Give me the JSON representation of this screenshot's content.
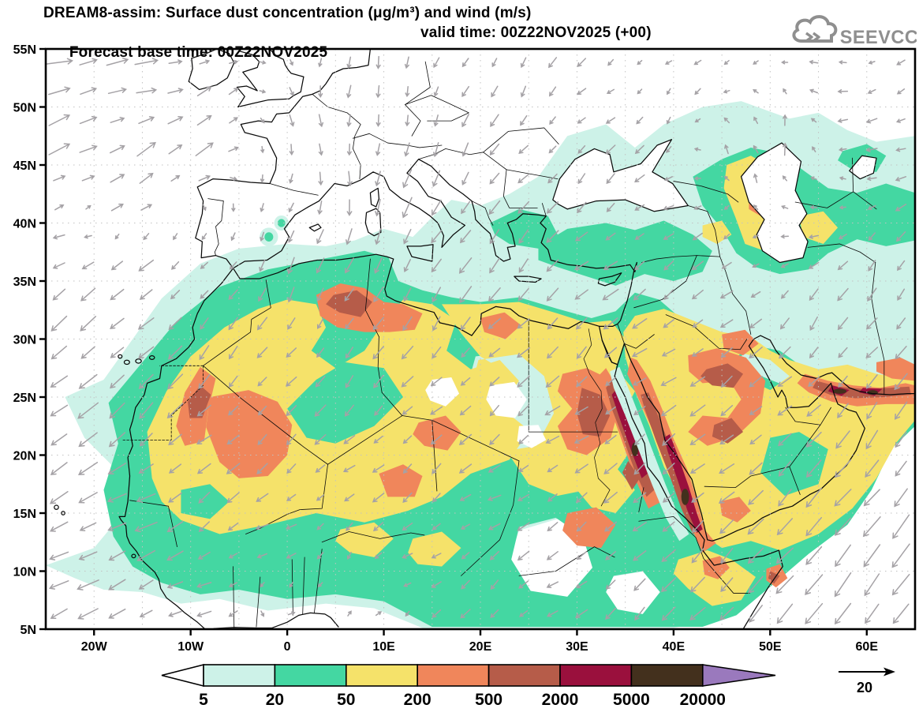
{
  "header": {
    "title_line1": "DREAM8-assim: Surface dust concentration (μg/m³) and wind (m/s)",
    "title_line2_left": "Forecast base time: 00Z22NOV2025",
    "title_line2_right": "valid time: 00Z22NOV2025 (+00)"
  },
  "logo": {
    "text": "SEEVCCC"
  },
  "axes": {
    "lat_labels": [
      "55N",
      "50N",
      "45N",
      "40N",
      "35N",
      "30N",
      "25N",
      "20N",
      "15N",
      "10N",
      "5N"
    ],
    "lon_labels": [
      "20W",
      "10W",
      "0",
      "10E",
      "20E",
      "30E",
      "40E",
      "50E",
      "60E"
    ]
  },
  "colorbar": {
    "tick_labels": [
      "5",
      "20",
      "50",
      "200",
      "500",
      "2000",
      "5000",
      "20000"
    ],
    "segment_colors": [
      "#ffffff",
      "#cdf2e8",
      "#44d7a2",
      "#f5e26a",
      "#f0865b",
      "#b65c49",
      "#9a103d",
      "#43301d",
      "#9a79bd"
    ],
    "segment_names": [
      "below-5",
      "5-20",
      "20-50",
      "50-200",
      "200-500",
      "500-2000",
      "2000-5000",
      "5000-20000",
      "above-20000"
    ]
  },
  "wind": {
    "reference_label": "20",
    "arrow_color": "#a5a2a6",
    "samples": [
      [
        -24,
        54,
        11,
        1
      ],
      [
        -16,
        53,
        10,
        2
      ],
      [
        -8,
        51,
        6,
        4
      ],
      [
        -23,
        47,
        9,
        6
      ],
      [
        -15,
        46,
        9,
        6
      ],
      [
        -8,
        46,
        7,
        6
      ],
      [
        -24,
        42,
        6,
        3
      ],
      [
        -16,
        42,
        7,
        4
      ],
      [
        -23,
        38,
        -7,
        -3
      ],
      [
        -15,
        37,
        -8,
        -4
      ],
      [
        -22,
        32,
        -8,
        -6
      ],
      [
        -13,
        31,
        -6,
        -6
      ],
      [
        -20,
        25,
        -8,
        -7
      ],
      [
        -13,
        24,
        -6,
        -6
      ],
      [
        -22,
        17,
        -8,
        -4
      ],
      [
        -15,
        14,
        -8,
        -3
      ],
      [
        -20,
        9,
        -8,
        -3
      ],
      [
        -10,
        8,
        -5,
        -2
      ],
      [
        0,
        6.5,
        3,
        2
      ],
      [
        8,
        6,
        3,
        2
      ],
      [
        2,
        49,
        1,
        -4
      ],
      [
        10,
        48,
        1,
        -5
      ],
      [
        18,
        48,
        -2,
        -4
      ],
      [
        27,
        47,
        -3,
        -3
      ],
      [
        5,
        43,
        1,
        -7
      ],
      [
        13,
        42,
        -3,
        -8
      ],
      [
        21,
        41,
        -5,
        -6
      ],
      [
        -4,
        40,
        -2,
        -4
      ],
      [
        0,
        36,
        -3,
        -6
      ],
      [
        9,
        35,
        -3,
        -7
      ],
      [
        18,
        35,
        -4,
        -6
      ],
      [
        27,
        34,
        -5,
        -6
      ],
      [
        34,
        35,
        -6,
        -4
      ],
      [
        -8,
        27,
        -4,
        -5
      ],
      [
        0,
        28,
        -3,
        -4
      ],
      [
        10,
        27,
        -4,
        -4
      ],
      [
        20,
        25,
        -4,
        -3
      ],
      [
        28,
        23,
        -5,
        -3
      ],
      [
        -10,
        20,
        -5,
        -4
      ],
      [
        0,
        20,
        -4,
        -3
      ],
      [
        10,
        19,
        -4,
        -3
      ],
      [
        20,
        16,
        -4,
        -2
      ],
      [
        28,
        15,
        -4,
        -2
      ],
      [
        -2,
        13,
        -4,
        -2
      ],
      [
        12,
        12,
        -3,
        -2
      ],
      [
        34,
        20,
        -4,
        -3
      ],
      [
        36,
        12,
        -4,
        -4
      ],
      [
        26,
        9,
        -3,
        -2
      ],
      [
        42,
        8,
        -5,
        -5
      ],
      [
        37,
        31,
        -5,
        -3
      ],
      [
        44,
        33,
        -4,
        -4
      ],
      [
        42,
        26,
        -6,
        -3
      ],
      [
        48,
        24,
        -5,
        -3
      ],
      [
        52,
        20,
        -5,
        -5
      ],
      [
        46,
        16,
        -5,
        -4
      ],
      [
        40,
        18,
        -5,
        -4
      ],
      [
        55,
        15,
        -7,
        -8
      ],
      [
        32,
        39,
        -4,
        -3
      ],
      [
        40,
        39,
        -3,
        -2
      ],
      [
        46,
        41,
        -2,
        -1
      ],
      [
        49,
        43,
        1,
        6
      ],
      [
        52,
        47,
        1,
        7
      ],
      [
        45,
        47,
        0,
        4
      ],
      [
        56,
        44,
        -2,
        1
      ],
      [
        62,
        48,
        -4,
        -1
      ],
      [
        64,
        42,
        -3,
        -2
      ],
      [
        56,
        32,
        -3,
        -5
      ],
      [
        62,
        33,
        -3,
        -6
      ],
      [
        58,
        38,
        -3,
        -2
      ],
      [
        64,
        37,
        -3,
        -3
      ],
      [
        50,
        8,
        -6,
        -8
      ],
      [
        57,
        10,
        -7,
        -9
      ],
      [
        63,
        13,
        -6,
        -9
      ],
      [
        64,
        7,
        -6,
        -8
      ],
      [
        60,
        20,
        -5,
        -7
      ],
      [
        64,
        24,
        -4,
        -6
      ],
      [
        33,
        44,
        -3,
        -3
      ],
      [
        40,
        46,
        -2,
        -2
      ],
      [
        16,
        52,
        -1,
        -4
      ],
      [
        24,
        52,
        -2,
        -3
      ],
      [
        33,
        51,
        -2,
        -2
      ],
      [
        41,
        51,
        -1,
        -2
      ],
      [
        57,
        50,
        -3,
        0
      ]
    ]
  },
  "chart_data": {
    "type": "contour-map",
    "variable": "Surface dust concentration",
    "units": "μg/m³",
    "contour_levels": [
      5,
      20,
      50,
      200,
      500,
      2000,
      5000,
      20000
    ],
    "wind_units": "m/s",
    "wind_reference": 20,
    "extent": {
      "lon": [
        -25,
        65
      ],
      "lat": [
        5,
        55
      ]
    }
  }
}
